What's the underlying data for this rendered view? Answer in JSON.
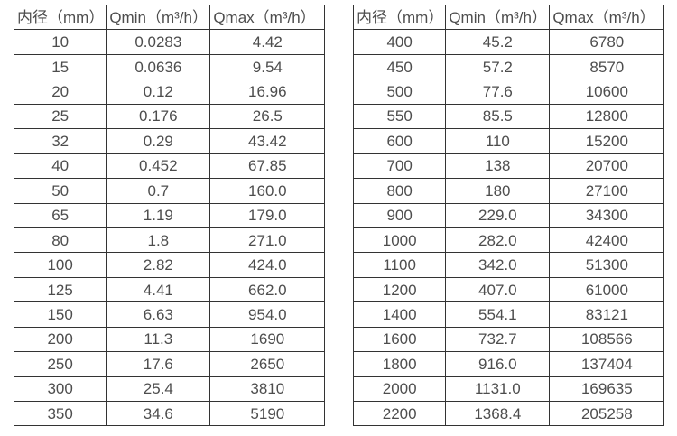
{
  "theme": {
    "background": "#ffffff",
    "text_color": "#4d4d4d",
    "border_color": "#333333"
  },
  "chart_data": [
    {
      "type": "table",
      "name": "flow-rate-table-small-diameters",
      "columns": [
        "内径（mm）",
        "Qmin（m³/h）",
        "Qmax（m³/h）"
      ],
      "rows": [
        [
          "10",
          "0.0283",
          "4.42"
        ],
        [
          "15",
          "0.0636",
          "9.54"
        ],
        [
          "20",
          "0.12",
          "16.96"
        ],
        [
          "25",
          "0.176",
          "26.5"
        ],
        [
          "32",
          "0.29",
          "43.42"
        ],
        [
          "40",
          "0.452",
          "67.85"
        ],
        [
          "50",
          "0.7",
          "160.0"
        ],
        [
          "65",
          "1.19",
          "179.0"
        ],
        [
          "80",
          "1.8",
          "271.0"
        ],
        [
          "100",
          "2.82",
          "424.0"
        ],
        [
          "125",
          "4.41",
          "662.0"
        ],
        [
          "150",
          "6.63",
          "954.0"
        ],
        [
          "200",
          "11.3",
          "1690"
        ],
        [
          "250",
          "17.6",
          "2650"
        ],
        [
          "300",
          "25.4",
          "3810"
        ],
        [
          "350",
          "34.6",
          "5190"
        ]
      ]
    },
    {
      "type": "table",
      "name": "flow-rate-table-large-diameters",
      "columns": [
        "内径（mm）",
        "Qmin（m³/h）",
        "Qmax（m³/h）"
      ],
      "rows": [
        [
          "400",
          "45.2",
          "6780"
        ],
        [
          "450",
          "57.2",
          "8570"
        ],
        [
          "500",
          "77.6",
          "10600"
        ],
        [
          "550",
          "85.5",
          "12800"
        ],
        [
          "600",
          "110",
          "15200"
        ],
        [
          "700",
          "138",
          "20700"
        ],
        [
          "800",
          "180",
          "27100"
        ],
        [
          "900",
          "229.0",
          "34300"
        ],
        [
          "1000",
          "282.0",
          "42400"
        ],
        [
          "1100",
          "342.0",
          "51300"
        ],
        [
          "1200",
          "407.0",
          "61000"
        ],
        [
          "1400",
          "554.1",
          "83121"
        ],
        [
          "1600",
          "732.7",
          "108566"
        ],
        [
          "1800",
          "916.0",
          "137404"
        ],
        [
          "2000",
          "1131.0",
          "169635"
        ],
        [
          "2200",
          "1368.4",
          "205258"
        ]
      ]
    }
  ]
}
